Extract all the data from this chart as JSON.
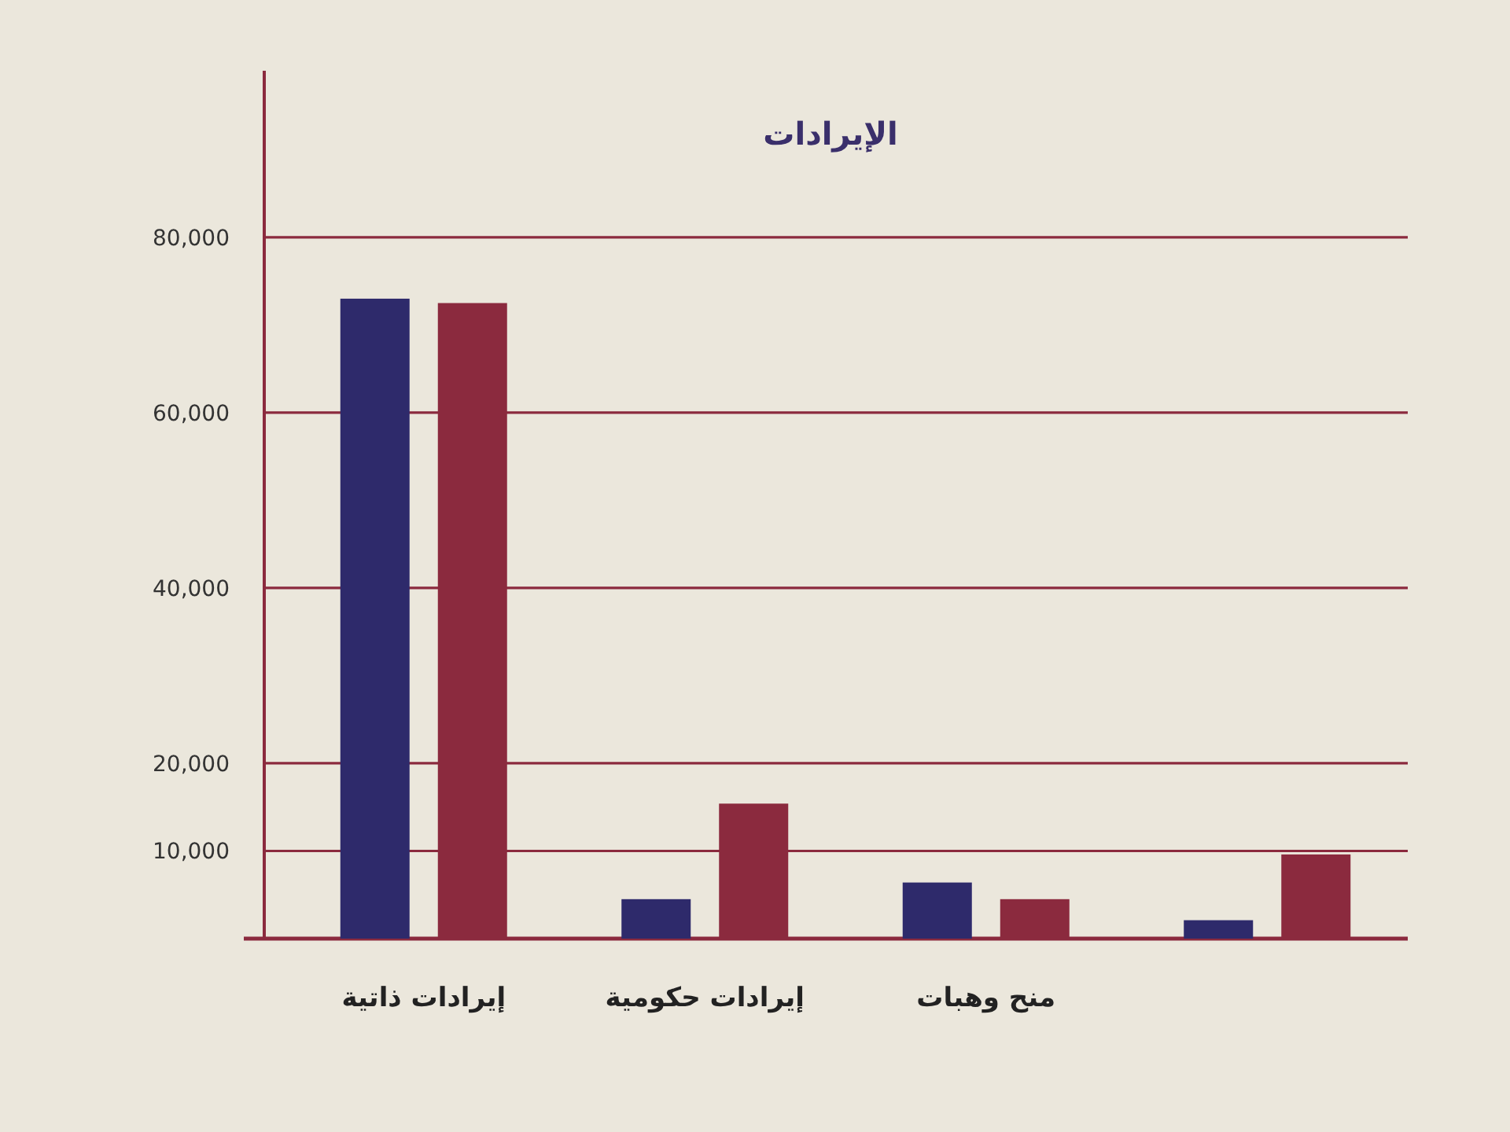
{
  "chart_data": {
    "type": "bar",
    "title": "الإيرادات",
    "categories": [
      "إيرادات ذاتية",
      "إيرادات حكومية",
      "منح وهبات",
      null
    ],
    "series": [
      {
        "color": "#2e2a6b",
        "values": [
          73000,
          4500,
          6400,
          2100
        ]
      },
      {
        "color": "#8b2a3e",
        "values": [
          72500,
          15400,
          4500,
          9600
        ]
      }
    ],
    "ylim": [
      0,
      99000
    ],
    "yticks": [
      {
        "value": 10000,
        "label": "10,000"
      },
      {
        "value": 20000,
        "label": "20,000"
      },
      {
        "value": 40000,
        "label": "40,000"
      },
      {
        "value": 60000,
        "label": "60,000"
      },
      {
        "value": 80000,
        "label": "80,000"
      }
    ],
    "grid": "y"
  }
}
